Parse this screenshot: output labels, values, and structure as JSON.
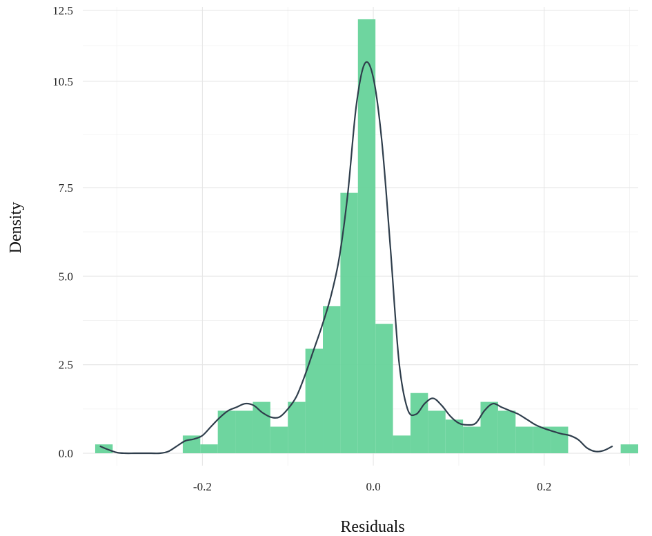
{
  "chart_data": {
    "type": "histogram_with_density",
    "xlabel": "Residuals",
    "ylabel": "Density",
    "xlim": [
      -0.34,
      0.31
    ],
    "ylim": [
      -0.35,
      12.6
    ],
    "x_ticks": [
      -0.2,
      0.0,
      0.2
    ],
    "x_tick_labels": [
      "-0.2",
      "0.0",
      "0.2"
    ],
    "y_ticks": [
      0.0,
      2.5,
      5.0,
      7.5,
      10.5,
      12.5
    ],
    "y_tick_labels": [
      "0.0",
      "2.5",
      "5.0",
      "7.5",
      "10.5",
      "12.5"
    ],
    "grid": true,
    "bar_color": "#66D39A",
    "line_color": "#2F3E4C",
    "histogram": {
      "bin_width": 0.0205,
      "bins": [
        {
          "x0": -0.3255,
          "x1": -0.305,
          "density": 0.25
        },
        {
          "x0": -0.305,
          "x1": -0.2845,
          "density": 0.0
        },
        {
          "x0": -0.2845,
          "x1": -0.264,
          "density": 0.0
        },
        {
          "x0": -0.264,
          "x1": -0.2435,
          "density": 0.0
        },
        {
          "x0": -0.2435,
          "x1": -0.223,
          "density": 0.0
        },
        {
          "x0": -0.223,
          "x1": -0.2025,
          "density": 0.5
        },
        {
          "x0": -0.2025,
          "x1": -0.182,
          "density": 0.25
        },
        {
          "x0": -0.182,
          "x1": -0.1615,
          "density": 1.2
        },
        {
          "x0": -0.1615,
          "x1": -0.141,
          "density": 1.2
        },
        {
          "x0": -0.141,
          "x1": -0.1205,
          "density": 1.45
        },
        {
          "x0": -0.1205,
          "x1": -0.1,
          "density": 0.75
        },
        {
          "x0": -0.1,
          "x1": -0.0795,
          "density": 1.45
        },
        {
          "x0": -0.0795,
          "x1": -0.059,
          "density": 2.95
        },
        {
          "x0": -0.059,
          "x1": -0.0385,
          "density": 4.15
        },
        {
          "x0": -0.0385,
          "x1": -0.018,
          "density": 7.35
        },
        {
          "x0": -0.018,
          "x1": 0.0025,
          "density": 12.25
        },
        {
          "x0": 0.0025,
          "x1": 0.023,
          "density": 3.65
        },
        {
          "x0": 0.023,
          "x1": 0.0435,
          "density": 0.5
        },
        {
          "x0": 0.0435,
          "x1": 0.064,
          "density": 1.7
        },
        {
          "x0": 0.064,
          "x1": 0.0845,
          "density": 1.2
        },
        {
          "x0": 0.0845,
          "x1": 0.105,
          "density": 0.95
        },
        {
          "x0": 0.105,
          "x1": 0.1255,
          "density": 0.75
        },
        {
          "x0": 0.1255,
          "x1": 0.146,
          "density": 1.45
        },
        {
          "x0": 0.146,
          "x1": 0.1665,
          "density": 1.2
        },
        {
          "x0": 0.1665,
          "x1": 0.187,
          "density": 0.75
        },
        {
          "x0": 0.187,
          "x1": 0.2075,
          "density": 0.75
        },
        {
          "x0": 0.2075,
          "x1": 0.228,
          "density": 0.75
        },
        {
          "x0": 0.228,
          "x1": 0.2485,
          "density": 0.0
        },
        {
          "x0": 0.2485,
          "x1": 0.269,
          "density": 0.0
        },
        {
          "x0": 0.269,
          "x1": 0.2895,
          "density": 0.0
        },
        {
          "x0": 0.2895,
          "x1": 0.31,
          "density": 0.25
        }
      ]
    },
    "density_curve": {
      "x": [
        -0.32,
        -0.31,
        -0.3,
        -0.29,
        -0.28,
        -0.27,
        -0.26,
        -0.25,
        -0.24,
        -0.23,
        -0.22,
        -0.21,
        -0.2,
        -0.19,
        -0.18,
        -0.17,
        -0.16,
        -0.15,
        -0.14,
        -0.13,
        -0.12,
        -0.11,
        -0.1,
        -0.09,
        -0.08,
        -0.07,
        -0.06,
        -0.05,
        -0.04,
        -0.03,
        -0.02,
        -0.01,
        0.0,
        0.01,
        0.02,
        0.03,
        0.04,
        0.05,
        0.06,
        0.07,
        0.08,
        0.09,
        0.1,
        0.11,
        0.12,
        0.13,
        0.14,
        0.15,
        0.16,
        0.17,
        0.18,
        0.19,
        0.2,
        0.21,
        0.22,
        0.23,
        0.24,
        0.25,
        0.26,
        0.27,
        0.28
      ],
      "y": [
        0.2,
        0.1,
        0.02,
        0.0,
        0.0,
        0.0,
        0.0,
        0.0,
        0.05,
        0.2,
        0.35,
        0.4,
        0.5,
        0.75,
        1.0,
        1.2,
        1.3,
        1.4,
        1.35,
        1.15,
        1.02,
        1.02,
        1.25,
        1.6,
        2.2,
        2.9,
        3.6,
        4.4,
        5.5,
        7.3,
        9.8,
        11.0,
        10.6,
        8.8,
        5.8,
        2.6,
        1.25,
        1.1,
        1.4,
        1.55,
        1.35,
        1.05,
        0.85,
        0.8,
        0.85,
        1.2,
        1.4,
        1.3,
        1.2,
        1.1,
        0.95,
        0.8,
        0.7,
        0.62,
        0.55,
        0.5,
        0.38,
        0.15,
        0.05,
        0.08,
        0.2
      ]
    }
  }
}
